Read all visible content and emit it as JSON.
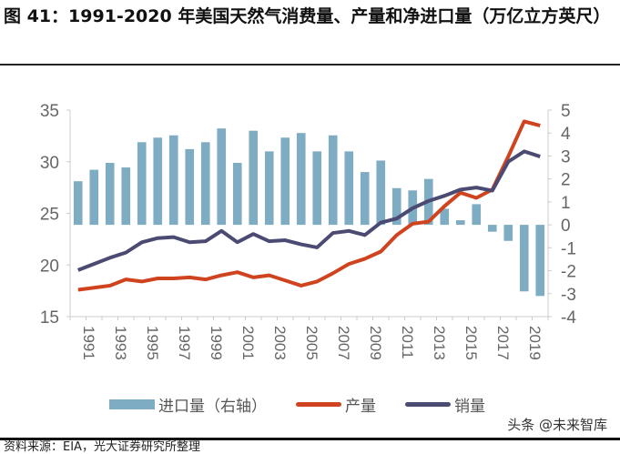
{
  "title": "图 41：1991-2020 年美国天然气消费量、产量和净进口量（万亿立方英尺）",
  "chart_data": {
    "type": "bar+line",
    "title": "图 41：1991-2020 年美国天然气消费量、产量和净进口量（万亿立方英尺）",
    "x": [
      1991,
      1992,
      1993,
      1994,
      1995,
      1996,
      1997,
      1998,
      1999,
      2000,
      2001,
      2002,
      2003,
      2004,
      2005,
      2006,
      2007,
      2008,
      2009,
      2010,
      2011,
      2012,
      2013,
      2014,
      2015,
      2016,
      2017,
      2018,
      2019,
      2020
    ],
    "x_tick_labels": [
      "1991",
      "1993",
      "1995",
      "1997",
      "1999",
      "2001",
      "2003",
      "2005",
      "2007",
      "2009",
      "2011",
      "2013",
      "2015",
      "2017",
      "2019"
    ],
    "left_ylim": [
      15,
      35
    ],
    "left_ticks": [
      15,
      20,
      25,
      30,
      35
    ],
    "right_ylim": [
      -4,
      5
    ],
    "right_ticks": [
      -4,
      -3,
      -2,
      -1,
      0,
      1,
      2,
      3,
      4,
      5
    ],
    "grid": false,
    "legend_position": "bottom",
    "series": [
      {
        "name": "进口量（右轴）",
        "type": "bar",
        "axis": "right",
        "color": "#7eacc2",
        "values": [
          1.9,
          2.4,
          2.7,
          2.5,
          3.6,
          3.8,
          3.9,
          3.3,
          3.6,
          4.2,
          2.7,
          4.1,
          3.2,
          3.8,
          4.0,
          3.2,
          3.9,
          3.2,
          2.3,
          2.8,
          1.6,
          1.5,
          2.0,
          0.7,
          0.2,
          0.9,
          -0.3,
          -0.7,
          -2.9,
          -3.1
        ]
      },
      {
        "name": "产量",
        "type": "line",
        "axis": "left",
        "color": "#d0431f",
        "values": [
          17.6,
          17.8,
          18.0,
          18.6,
          18.4,
          18.7,
          18.7,
          18.8,
          18.6,
          19.0,
          19.3,
          18.8,
          19.0,
          18.5,
          18.0,
          18.4,
          19.2,
          20.1,
          20.6,
          21.3,
          22.9,
          24.0,
          24.2,
          25.7,
          27.0,
          26.5,
          27.3,
          30.5,
          33.9,
          33.5
        ]
      },
      {
        "name": "销量",
        "type": "line",
        "axis": "left",
        "color": "#4a4a72",
        "values": [
          19.5,
          20.1,
          20.7,
          21.2,
          22.2,
          22.6,
          22.7,
          22.2,
          22.3,
          23.3,
          22.2,
          23.0,
          22.3,
          22.4,
          22.0,
          21.7,
          23.1,
          23.3,
          22.9,
          24.1,
          24.5,
          25.5,
          26.2,
          26.7,
          27.3,
          27.5,
          27.2,
          30.0,
          31.0,
          30.5
        ]
      }
    ]
  },
  "watermark": "头条 @未来智库",
  "source": "资料来源：EIA，光大证券研究所整理"
}
